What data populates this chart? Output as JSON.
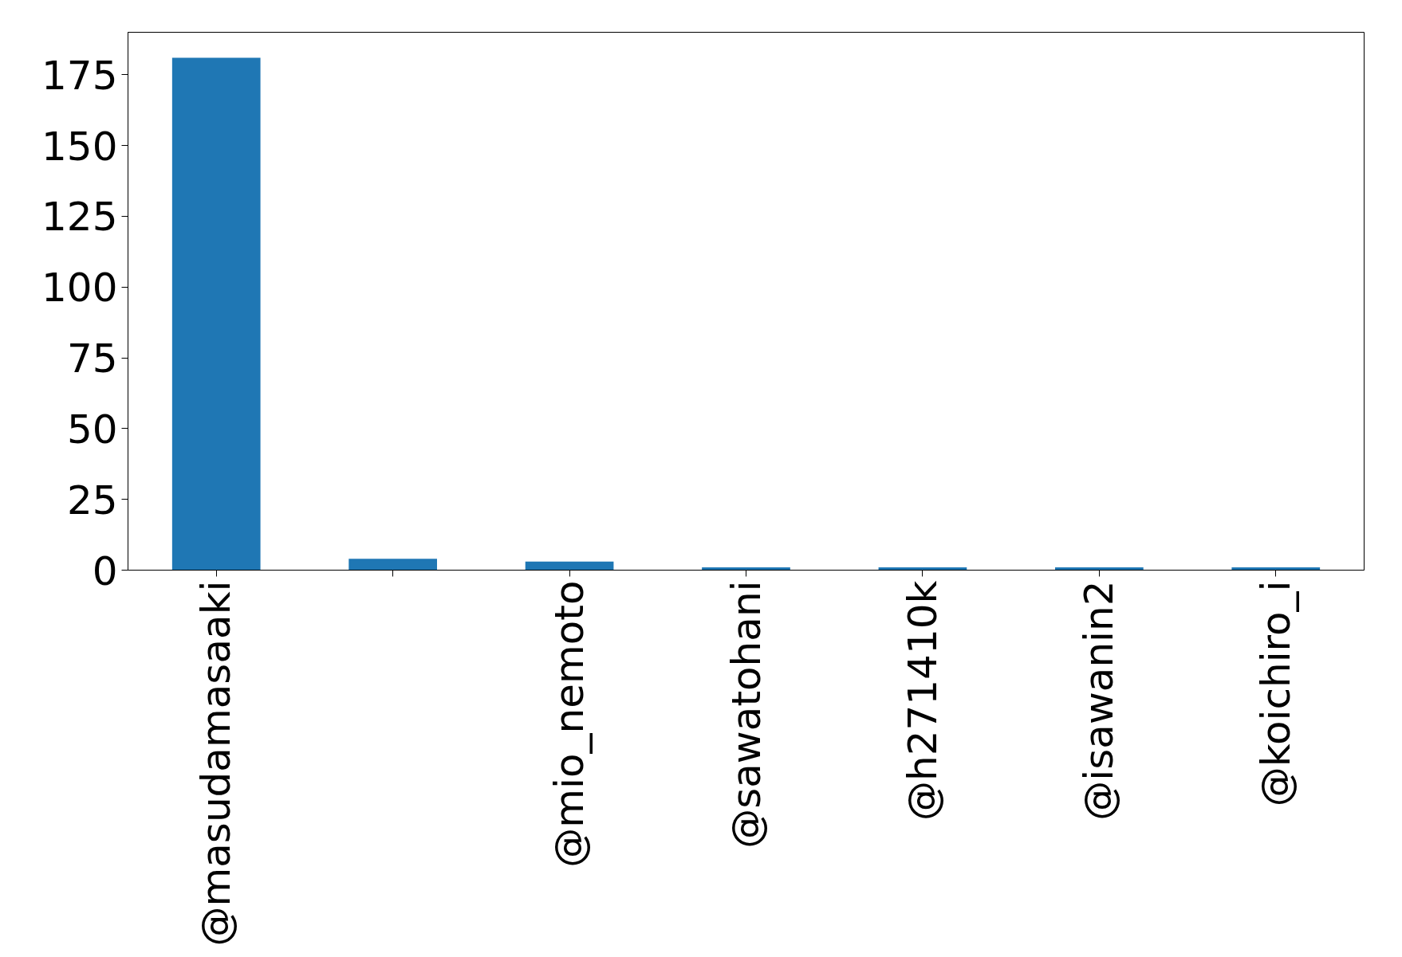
{
  "chart_data": {
    "type": "bar",
    "categories": [
      "@masudamasaaki",
      null,
      "@mio_nemoto",
      "@sawatohani",
      "@h271410k",
      "@isawanin2",
      "@koichiro_i"
    ],
    "values": [
      181,
      4,
      3,
      1,
      1,
      1,
      1
    ],
    "color": "#1f77b4",
    "ylim": [
      0,
      190
    ],
    "yticks": [
      0,
      25,
      50,
      75,
      100,
      125,
      150,
      175
    ],
    "grid": false
  }
}
